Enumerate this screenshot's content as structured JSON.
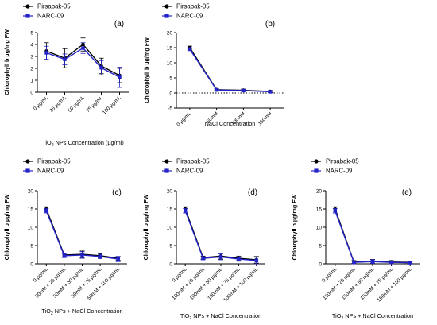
{
  "chart_data": [
    {
      "type": "line",
      "panel": "(a)",
      "xlabel": "TiO₂ NPs Concentration (µg/ml)",
      "ylabel": "Chlorophyll b µg/mg FW",
      "ylim": [
        0,
        5
      ],
      "yticks": [
        0,
        1,
        2,
        3,
        4,
        5
      ],
      "zero_line": false,
      "categories": [
        "0 µg/mL",
        "25 µg/mL",
        "50 µg/mL",
        "75 µg/mL",
        "100 µg/mL"
      ],
      "legend_position": "top-left",
      "series": [
        {
          "name": "Pirsabak-05",
          "color": "#000000",
          "values": [
            3.45,
            2.85,
            4.0,
            2.2,
            1.4
          ],
          "errors": [
            0.7,
            0.8,
            0.55,
            0.65,
            0.6
          ]
        },
        {
          "name": "NARC-09",
          "color": "#2323c8",
          "values": [
            3.3,
            2.75,
            3.7,
            2.05,
            1.25
          ],
          "errors": [
            0.55,
            0.45,
            0.45,
            0.6,
            0.85
          ]
        }
      ]
    },
    {
      "type": "line",
      "panel": "(b)",
      "xlabel": "NaCl Concentration",
      "ylabel": "Chlorophyll b µg/mg FW",
      "ylim": [
        -5,
        20
      ],
      "yticks": [
        -5,
        0,
        5,
        10,
        15,
        20
      ],
      "zero_line": true,
      "categories": [
        "0 µg/mL",
        "50mM",
        "100mM",
        "150mM"
      ],
      "legend_position": "top-left",
      "series": [
        {
          "name": "Pirsabak-05",
          "color": "#000000",
          "values": [
            15.0,
            1.1,
            0.9,
            0.5
          ],
          "errors": [
            0.5,
            0.3,
            0.4,
            0.3
          ]
        },
        {
          "name": "NARC-09",
          "color": "#2323c8",
          "values": [
            14.5,
            1.0,
            0.8,
            0.4
          ],
          "errors": [
            0.5,
            0.3,
            0.3,
            0.3
          ]
        }
      ]
    },
    {
      "type": "line",
      "panel": "(c)",
      "xlabel": "TiO₂ NPs + NaCl Concentration",
      "ylabel": "Chlorophyll b µg/mg FW",
      "ylim": [
        0,
        20
      ],
      "yticks": [
        0,
        5,
        10,
        15,
        20
      ],
      "zero_line": false,
      "categories": [
        "0 µg/mL",
        "50mM + 25 µg/mL",
        "50mM + 50 µg/mL",
        "50mM + 75 µg/mL",
        "50mM + 100 µg/mL"
      ],
      "legend_position": "top-left",
      "series": [
        {
          "name": "Pirsabak-05",
          "color": "#000000",
          "values": [
            15.0,
            2.4,
            2.6,
            2.2,
            1.5
          ],
          "errors": [
            0.6,
            0.5,
            0.9,
            0.6,
            0.5
          ]
        },
        {
          "name": "NARC-09",
          "color": "#2323c8",
          "values": [
            14.5,
            2.2,
            2.4,
            2.0,
            1.3
          ],
          "errors": [
            0.6,
            0.5,
            0.9,
            0.6,
            0.7
          ]
        }
      ]
    },
    {
      "type": "line",
      "panel": "(d)",
      "xlabel": "TiO₂ NPs + NaCl Concentration",
      "ylabel": "Chlorophyll b µg/mg FW",
      "ylim": [
        0,
        20
      ],
      "yticks": [
        0,
        5,
        10,
        15,
        20
      ],
      "zero_line": false,
      "categories": [
        "0 µg/mL",
        "100mM + 25 µg/mL",
        "100mM + 50 µg/mL",
        "100mM + 75 µg/mL",
        "100mM + 100 µg/mL"
      ],
      "legend_position": "top-left",
      "series": [
        {
          "name": "Pirsabak-05",
          "color": "#000000",
          "values": [
            15.0,
            1.7,
            2.1,
            1.5,
            1.1
          ],
          "errors": [
            0.6,
            0.4,
            0.8,
            0.6,
            0.9
          ]
        },
        {
          "name": "NARC-09",
          "color": "#2323c8",
          "values": [
            14.5,
            1.5,
            1.9,
            1.3,
            0.9
          ],
          "errors": [
            0.6,
            0.4,
            0.8,
            0.6,
            0.9
          ]
        }
      ]
    },
    {
      "type": "line",
      "panel": "(e)",
      "xlabel": "TiO₂ NPs + NaCl Concentration",
      "ylabel": "Chlorophyll b µg/mg FW",
      "ylim": [
        0,
        20
      ],
      "yticks": [
        0,
        5,
        10,
        15,
        20
      ],
      "zero_line": false,
      "categories": [
        "0 µg/mL",
        "150mM + 25 µg/mL",
        "150mM + 50 µg/mL",
        "150mM + 75 µg/mL",
        "150mM + 100 µg/mL"
      ],
      "legend_position": "top-left",
      "series": [
        {
          "name": "Pirsabak-05",
          "color": "#000000",
          "values": [
            15.0,
            0.5,
            0.7,
            0.5,
            0.4
          ],
          "errors": [
            0.6,
            0.4,
            0.5,
            0.4,
            0.3
          ]
        },
        {
          "name": "NARC-09",
          "color": "#2323c8",
          "values": [
            14.5,
            0.4,
            0.6,
            0.4,
            0.3
          ],
          "errors": [
            0.6,
            0.4,
            0.5,
            0.4,
            0.3
          ]
        }
      ]
    }
  ]
}
